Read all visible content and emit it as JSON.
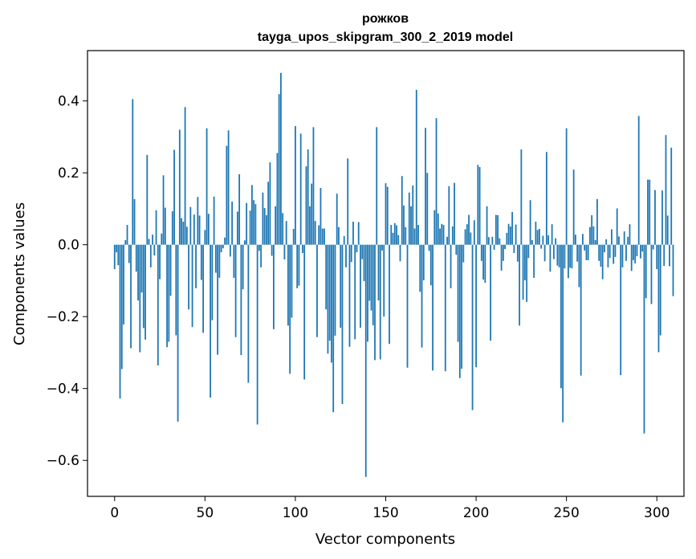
{
  "chart_data": {
    "type": "bar",
    "title": "рожков",
    "subtitle": "tayga_upos_skipgram_300_2_2019 model",
    "xlabel": "Vector components",
    "ylabel": "Components values",
    "xlim": [
      -15,
      315
    ],
    "ylim": [
      -0.7,
      0.54
    ],
    "xticks": [
      0,
      50,
      100,
      150,
      200,
      250,
      300
    ],
    "xtick_labels": [
      "0",
      "50",
      "100",
      "150",
      "200",
      "250",
      "300"
    ],
    "yticks": [
      -0.6,
      -0.4,
      -0.2,
      0.0,
      0.2,
      0.4
    ],
    "ytick_labels": [
      "−0.6",
      "−0.4",
      "−0.2",
      "0.0",
      "0.2",
      "0.4"
    ],
    "bar_color": "#1f77b4",
    "grid": false,
    "legend": "none",
    "values": [
      -0.068,
      -0.021,
      -0.057,
      -0.428,
      -0.346,
      -0.222,
      0.013,
      0.055,
      -0.051,
      -0.288,
      0.405,
      0.127,
      -0.075,
      -0.155,
      -0.299,
      -0.133,
      -0.232,
      -0.264,
      0.25,
      0.016,
      -0.063,
      0.028,
      -0.03,
      0.096,
      -0.336,
      -0.096,
      0.031,
      0.193,
      0.103,
      -0.285,
      -0.27,
      -0.142,
      0.093,
      0.264,
      -0.252,
      -0.492,
      0.32,
      0.074,
      0.064,
      0.383,
      0.05,
      -0.18,
      0.105,
      -0.229,
      0.084,
      -0.121,
      0.133,
      0.081,
      -0.098,
      -0.245,
      0.041,
      0.324,
      0.086,
      -0.425,
      -0.21,
      0.134,
      -0.078,
      -0.306,
      -0.092,
      -0.021,
      -0.01,
      0.02,
      0.275,
      0.318,
      -0.033,
      0.12,
      -0.092,
      -0.257,
      0.092,
      0.196,
      -0.307,
      -0.124,
      0.012,
      0.116,
      -0.384,
      0.095,
      0.166,
      0.124,
      0.113,
      -0.5,
      -0.017,
      -0.063,
      0.145,
      0.102,
      0.082,
      0.175,
      0.229,
      -0.031,
      -0.235,
      0.107,
      0.255,
      0.419,
      0.478,
      0.088,
      -0.041,
      0.066,
      -0.225,
      -0.359,
      -0.203,
      0.044,
      0.33,
      -0.121,
      -0.114,
      0.309,
      -0.023,
      -0.375,
      0.218,
      0.265,
      0.107,
      0.17,
      0.327,
      0.066,
      -0.257,
      0.054,
      0.158,
      0.045,
      0.045,
      -0.18,
      -0.303,
      -0.267,
      -0.328,
      -0.466,
      -0.253,
      0.142,
      0.049,
      -0.231,
      -0.443,
      0.024,
      -0.063,
      0.24,
      -0.284,
      -0.048,
      0.064,
      -0.263,
      -0.021,
      0.063,
      -0.231,
      -0.04,
      -0.101,
      -0.646,
      -0.27,
      -0.156,
      -0.183,
      -0.224,
      -0.321,
      0.327,
      -0.155,
      -0.319,
      -0.016,
      -0.2,
      0.171,
      0.161,
      -0.276,
      0.055,
      0.033,
      0.06,
      0.054,
      0.027,
      -0.046,
      0.191,
      0.109,
      0.049,
      -0.342,
      0.145,
      0.107,
      0.165,
      0.045,
      0.431,
      0.055,
      -0.131,
      -0.286,
      -0.099,
      0.325,
      0.2,
      -0.017,
      -0.113,
      -0.35,
      0.096,
      0.352,
      0.087,
      0.045,
      0.058,
      0.055,
      -0.352,
      0.022,
      0.163,
      -0.121,
      0.051,
      0.172,
      -0.028,
      -0.27,
      -0.371,
      -0.345,
      -0.049,
      0.043,
      0.057,
      0.083,
      0.034,
      -0.46,
      0.068,
      -0.341,
      0.222,
      0.216,
      -0.045,
      -0.097,
      -0.106,
      0.107,
      0.021,
      -0.267,
      0.022,
      -0.014,
      0.083,
      0.082,
      0.018,
      -0.072,
      -0.045,
      -0.012,
      0.033,
      0.058,
      0.051,
      0.091,
      -0.023,
      0.056,
      -0.047,
      -0.225,
      0.265,
      -0.153,
      -0.099,
      -0.159,
      -0.037,
      0.124,
      0.013,
      -0.092,
      0.064,
      0.041,
      0.044,
      -0.011,
      0.025,
      -0.046,
      0.258,
      0.026,
      -0.075,
      0.057,
      -0.04,
      0.018,
      -0.058,
      -0.063,
      -0.399,
      -0.494,
      -0.066,
      0.324,
      -0.093,
      -0.064,
      -0.066,
      0.209,
      0.028,
      -0.047,
      -0.118,
      -0.364,
      0.03,
      -0.016,
      -0.043,
      -0.043,
      0.049,
      0.082,
      0.051,
      0.013,
      0.127,
      -0.045,
      -0.061,
      -0.096,
      -0.021,
      0.015,
      -0.063,
      -0.037,
      0.043,
      -0.053,
      -0.034,
      0.101,
      0.023,
      -0.363,
      -0.063,
      0.037,
      -0.045,
      0.022,
      0.057,
      -0.073,
      -0.043,
      -0.052,
      -0.032,
      0.358,
      -0.038,
      -0.019,
      -0.525,
      -0.149,
      0.181,
      0.181,
      -0.165,
      -0.013,
      0.152,
      -0.068,
      -0.299,
      -0.252,
      0.151,
      -0.059,
      0.305,
      0.081,
      -0.06,
      0.27,
      -0.143
    ]
  }
}
